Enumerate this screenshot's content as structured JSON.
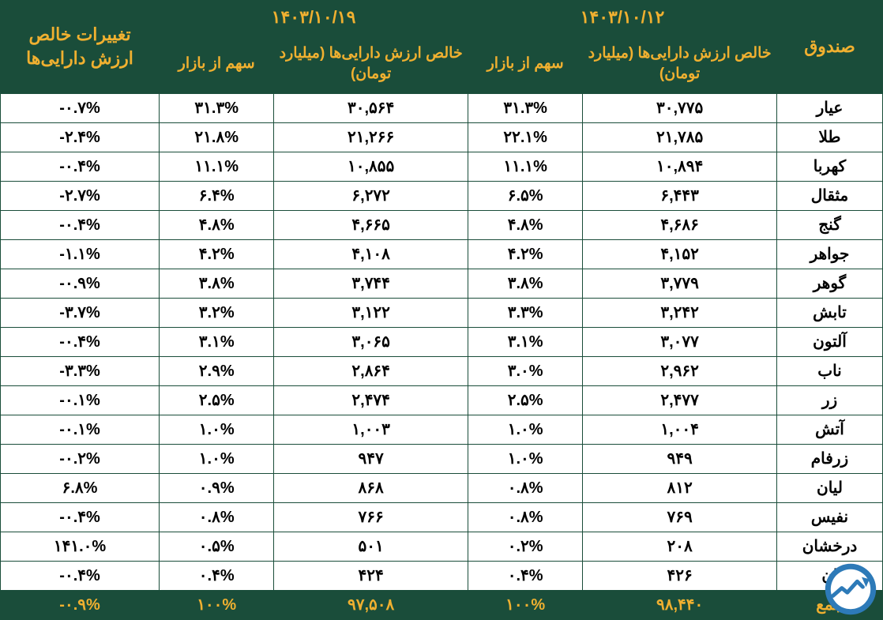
{
  "header": {
    "date_newer": "۱۴۰۳/۱۰/۱۹",
    "date_older": "۱۴۰۳/۱۰/۱۲",
    "fund_label": "صندوق",
    "nav_label": "خالص ارزش دارایی‌ها (میلیارد تومان)",
    "share_label": "سهم از بازار",
    "change_label": "تغییرات خالص ارزش دارایی‌ها"
  },
  "rows": [
    {
      "name": "عیار",
      "nav1": "۳۰,۷۷۵",
      "sh1": "۳۱.۳%",
      "nav2": "۳۰,۵۶۴",
      "sh2": "۳۱.۳%",
      "chg": "-۰.۷%"
    },
    {
      "name": "طلا",
      "nav1": "۲۱,۷۸۵",
      "sh1": "۲۲.۱%",
      "nav2": "۲۱,۲۶۶",
      "sh2": "۲۱.۸%",
      "chg": "-۲.۴%"
    },
    {
      "name": "کهربا",
      "nav1": "۱۰,۸۹۴",
      "sh1": "۱۱.۱%",
      "nav2": "۱۰,۸۵۵",
      "sh2": "۱۱.۱%",
      "chg": "-۰.۴%"
    },
    {
      "name": "مثقال",
      "nav1": "۶,۴۴۳",
      "sh1": "۶.۵%",
      "nav2": "۶,۲۷۲",
      "sh2": "۶.۴%",
      "chg": "-۲.۷%"
    },
    {
      "name": "گنج",
      "nav1": "۴,۶۸۶",
      "sh1": "۴.۸%",
      "nav2": "۴,۶۶۵",
      "sh2": "۴.۸%",
      "chg": "-۰.۴%"
    },
    {
      "name": "جواهر",
      "nav1": "۴,۱۵۲",
      "sh1": "۴.۲%",
      "nav2": "۴,۱۰۸",
      "sh2": "۴.۲%",
      "chg": "-۱.۱%"
    },
    {
      "name": "گوهر",
      "nav1": "۳,۷۷۹",
      "sh1": "۳.۸%",
      "nav2": "۳,۷۴۴",
      "sh2": "۳.۸%",
      "chg": "-۰.۹%"
    },
    {
      "name": "تابش",
      "nav1": "۳,۲۴۲",
      "sh1": "۳.۳%",
      "nav2": "۳,۱۲۲",
      "sh2": "۳.۲%",
      "chg": "-۳.۷%"
    },
    {
      "name": "آلتون",
      "nav1": "۳,۰۷۷",
      "sh1": "۳.۱%",
      "nav2": "۳,۰۶۵",
      "sh2": "۳.۱%",
      "chg": "-۰.۴%"
    },
    {
      "name": "ناب",
      "nav1": "۲,۹۶۲",
      "sh1": "۳.۰%",
      "nav2": "۲,۸۶۴",
      "sh2": "۲.۹%",
      "chg": "-۳.۳%"
    },
    {
      "name": "زر",
      "nav1": "۲,۴۷۷",
      "sh1": "۲.۵%",
      "nav2": "۲,۴۷۴",
      "sh2": "۲.۵%",
      "chg": "-۰.۱%"
    },
    {
      "name": "آتش",
      "nav1": "۱,۰۰۴",
      "sh1": "۱.۰%",
      "nav2": "۱,۰۰۳",
      "sh2": "۱.۰%",
      "chg": "-۰.۱%"
    },
    {
      "name": "زرفام",
      "nav1": "۹۴۹",
      "sh1": "۱.۰%",
      "nav2": "۹۴۷",
      "sh2": "۱.۰%",
      "chg": "-۰.۲%"
    },
    {
      "name": "لیان",
      "nav1": "۸۱۲",
      "sh1": "۰.۸%",
      "nav2": "۸۶۸",
      "sh2": "۰.۹%",
      "chg": "۶.۸%"
    },
    {
      "name": "نفیس",
      "nav1": "۷۶۹",
      "sh1": "۰.۸%",
      "nav2": "۷۶۶",
      "sh2": "۰.۸%",
      "chg": "-۰.۴%"
    },
    {
      "name": "درخشان",
      "nav1": "۲۰۸",
      "sh1": "۰.۲%",
      "nav2": "۵۰۱",
      "sh2": "۰.۵%",
      "chg": "۱۴۱.۰%"
    },
    {
      "name": "ان",
      "nav1": "۴۲۶",
      "sh1": "۰.۴%",
      "nav2": "۴۲۴",
      "sh2": "۰.۴%",
      "chg": "-۰.۴%"
    }
  ],
  "totals": {
    "name": "جمع",
    "nav1": "۹۸,۴۴۰",
    "sh1": "۱۰۰%",
    "nav2": "۹۷,۵۰۸",
    "sh2": "۱۰۰%",
    "chg": "-۰.۹%"
  },
  "style": {
    "header_bg": "#1a4d3a",
    "header_fg": "#f0b030",
    "body_bg": "#ffffff",
    "body_fg": "#000000",
    "border_color": "#1a4d3a",
    "font_family": "Tahoma",
    "header_fontsize_pt": 16,
    "body_fontsize_pt": 15,
    "col_widths_pct": [
      12,
      22,
      13,
      22,
      13,
      18
    ]
  }
}
